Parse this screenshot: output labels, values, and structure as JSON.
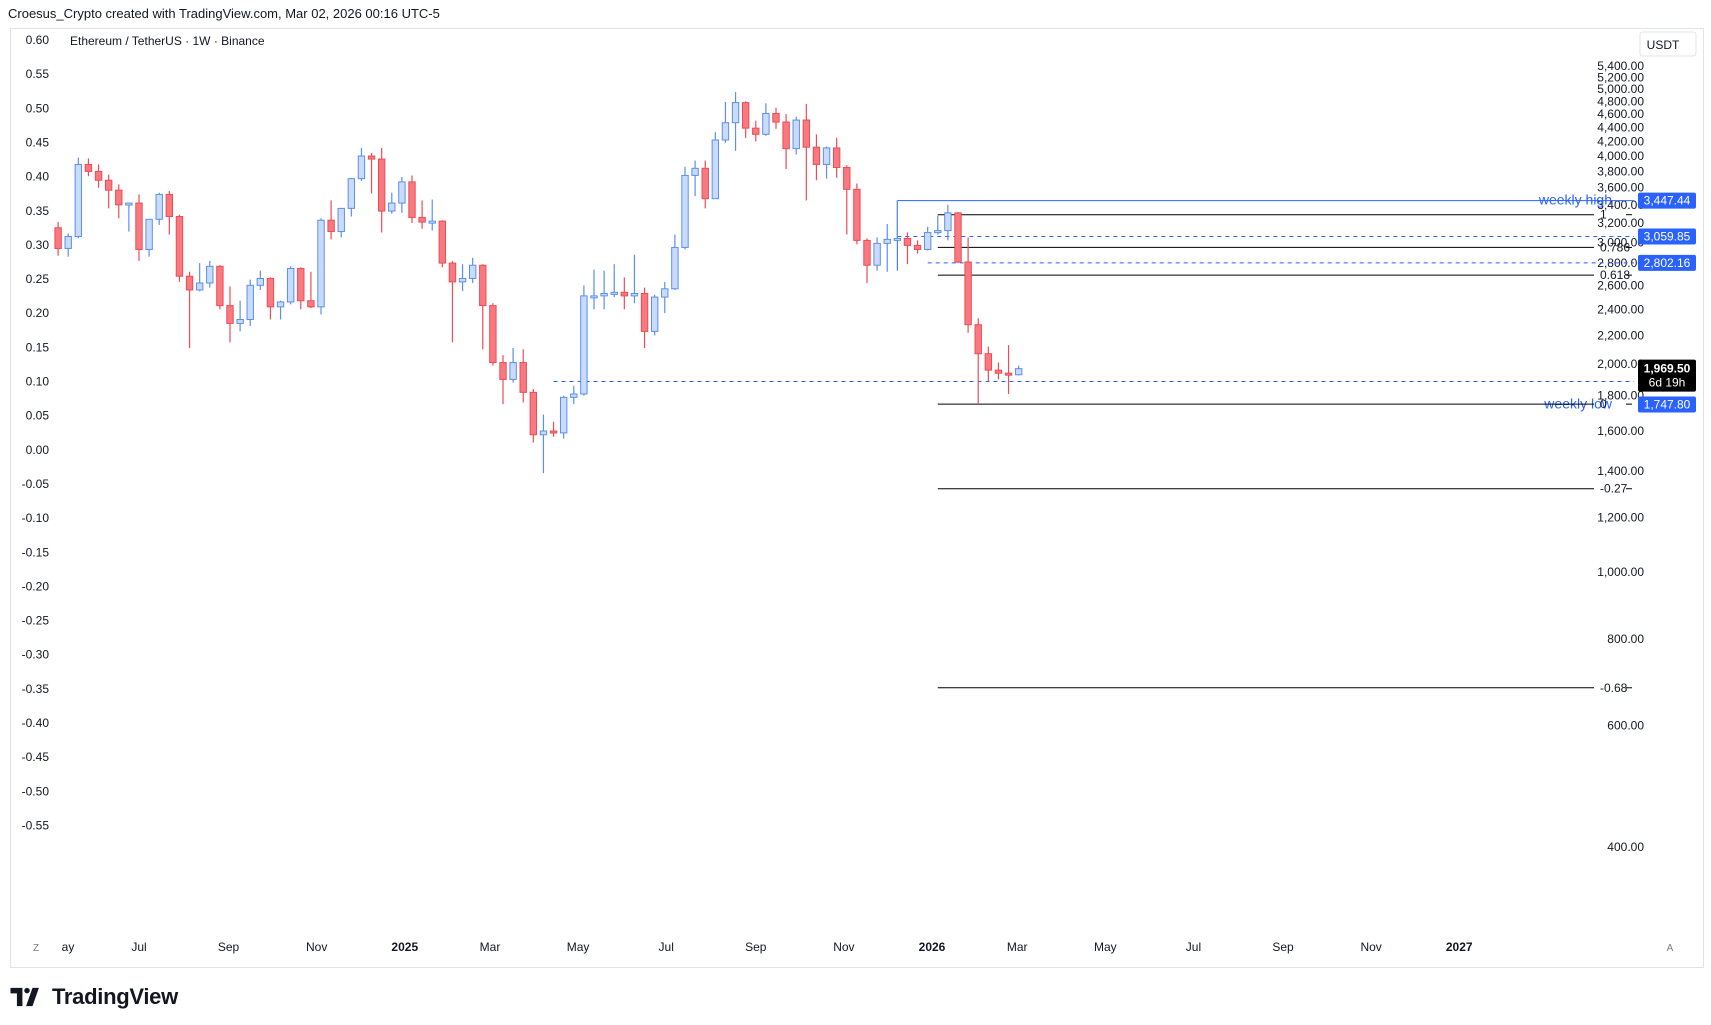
{
  "header": {
    "attribution": "Croesus_Crypto created with TradingView.com, Mar 02, 2026 00:16 UTC-5"
  },
  "brand": {
    "name": "TradingView"
  },
  "colors": {
    "up": "#5b8ff0",
    "up_fill": "#c9dbff",
    "down": "#f04b55",
    "down_fill": "#f77a80",
    "accent": "#2962ff",
    "fib": "#000000"
  },
  "chart_data": {
    "type": "candlestick",
    "title": "Ethereum / TetherUS · 1W · Binance",
    "currency": "USDT",
    "left_axis": {
      "ticks": [
        "0.60",
        "0.55",
        "0.50",
        "0.45",
        "0.40",
        "0.35",
        "0.30",
        "0.25",
        "0.20",
        "0.15",
        "0.10",
        "0.05",
        "0.00",
        "-0.05",
        "-0.10",
        "-0.15",
        "-0.20",
        "-0.25",
        "-0.30",
        "-0.35",
        "-0.40",
        "-0.45",
        "-0.50",
        "-0.55"
      ]
    },
    "right_axis": {
      "scale": "log",
      "ylim": [
        380,
        5650
      ],
      "ticks": [
        5400,
        5200,
        5000,
        4800,
        4600,
        4400,
        4200,
        4000,
        3800,
        3600,
        3400,
        3200,
        3000,
        2800,
        2600,
        2400,
        2200,
        2000,
        1800,
        1600,
        1400,
        1200,
        1000,
        800,
        600,
        400
      ],
      "tick_labels": [
        "5,400.00",
        "5,200.00",
        "5,000.00",
        "4,800.00",
        "4,600.00",
        "4,400.00",
        "4,200.00",
        "4,000.00",
        "3,800.00",
        "3,600.00",
        "3,400.00",
        "3,200.00",
        "3,000.00",
        "2,800.00",
        "2,600.00",
        "2,400.00",
        "2,200.00",
        "2,000.00",
        "1,800.00",
        "1,600.00",
        "1,400.00",
        "1,200.00",
        "1,000.00",
        "800.00",
        "600.00",
        "400.00"
      ]
    },
    "x_axis": {
      "labels": [
        {
          "date": "2024-05-01",
          "label": "ay",
          "bold": false
        },
        {
          "date": "2024-07-01",
          "label": "Jul",
          "bold": false
        },
        {
          "date": "2024-09-01",
          "label": "Sep",
          "bold": false
        },
        {
          "date": "2024-11-01",
          "label": "Nov",
          "bold": false
        },
        {
          "date": "2025-01-01",
          "label": "2025",
          "bold": true
        },
        {
          "date": "2025-03-01",
          "label": "Mar",
          "bold": false
        },
        {
          "date": "2025-05-01",
          "label": "May",
          "bold": false
        },
        {
          "date": "2025-07-01",
          "label": "Jul",
          "bold": false
        },
        {
          "date": "2025-09-01",
          "label": "Sep",
          "bold": false
        },
        {
          "date": "2025-11-01",
          "label": "Nov",
          "bold": false
        },
        {
          "date": "2026-01-01",
          "label": "2026",
          "bold": true
        },
        {
          "date": "2026-03-01",
          "label": "Mar",
          "bold": false
        },
        {
          "date": "2026-05-01",
          "label": "May",
          "bold": false
        },
        {
          "date": "2026-07-01",
          "label": "Jul",
          "bold": false
        },
        {
          "date": "2026-09-01",
          "label": "Sep",
          "bold": false
        },
        {
          "date": "2026-11-01",
          "label": "Nov",
          "bold": false
        },
        {
          "date": "2027-01-01",
          "label": "2027",
          "bold": true
        }
      ],
      "left_corner": "Z",
      "right_corner": "A"
    },
    "candles": [
      {
        "date": "2024-05-06",
        "o": 3150,
        "h": 3210,
        "l": 2870,
        "c": 2940
      },
      {
        "date": "2024-05-13",
        "o": 2940,
        "h": 3090,
        "l": 2860,
        "c": 3060
      },
      {
        "date": "2024-05-20",
        "o": 3060,
        "h": 3980,
        "l": 3040,
        "c": 3890
      },
      {
        "date": "2024-05-27",
        "o": 3890,
        "h": 3970,
        "l": 3740,
        "c": 3800
      },
      {
        "date": "2024-06-03",
        "o": 3800,
        "h": 3890,
        "l": 3600,
        "c": 3690
      },
      {
        "date": "2024-06-10",
        "o": 3690,
        "h": 3760,
        "l": 3360,
        "c": 3570
      },
      {
        "date": "2024-06-17",
        "o": 3570,
        "h": 3640,
        "l": 3250,
        "c": 3400
      },
      {
        "date": "2024-06-24",
        "o": 3400,
        "h": 3420,
        "l": 3110,
        "c": 3420
      },
      {
        "date": "2024-07-01",
        "o": 3420,
        "h": 3520,
        "l": 2820,
        "c": 2930
      },
      {
        "date": "2024-07-08",
        "o": 2930,
        "h": 3210,
        "l": 2860,
        "c": 3240
      },
      {
        "date": "2024-07-15",
        "o": 3240,
        "h": 3540,
        "l": 3180,
        "c": 3520
      },
      {
        "date": "2024-07-22",
        "o": 3520,
        "h": 3560,
        "l": 3080,
        "c": 3270
      },
      {
        "date": "2024-07-29",
        "o": 3270,
        "h": 3290,
        "l": 2630,
        "c": 2680
      },
      {
        "date": "2024-08-05",
        "o": 2680,
        "h": 2720,
        "l": 2110,
        "c": 2560
      },
      {
        "date": "2024-08-12",
        "o": 2560,
        "h": 2800,
        "l": 2550,
        "c": 2620
      },
      {
        "date": "2024-08-19",
        "o": 2620,
        "h": 2820,
        "l": 2580,
        "c": 2770
      },
      {
        "date": "2024-08-26",
        "o": 2770,
        "h": 2780,
        "l": 2400,
        "c": 2430
      },
      {
        "date": "2024-09-02",
        "o": 2430,
        "h": 2590,
        "l": 2150,
        "c": 2290
      },
      {
        "date": "2024-09-09",
        "o": 2290,
        "h": 2470,
        "l": 2230,
        "c": 2320
      },
      {
        "date": "2024-09-16",
        "o": 2320,
        "h": 2650,
        "l": 2270,
        "c": 2600
      },
      {
        "date": "2024-09-23",
        "o": 2600,
        "h": 2730,
        "l": 2560,
        "c": 2660
      },
      {
        "date": "2024-09-30",
        "o": 2660,
        "h": 2670,
        "l": 2320,
        "c": 2420
      },
      {
        "date": "2024-10-07",
        "o": 2420,
        "h": 2470,
        "l": 2320,
        "c": 2460
      },
      {
        "date": "2024-10-14",
        "o": 2460,
        "h": 2770,
        "l": 2440,
        "c": 2750
      },
      {
        "date": "2024-10-21",
        "o": 2750,
        "h": 2760,
        "l": 2400,
        "c": 2470
      },
      {
        "date": "2024-10-28",
        "o": 2470,
        "h": 2720,
        "l": 2410,
        "c": 2420
      },
      {
        "date": "2024-11-04",
        "o": 2420,
        "h": 3250,
        "l": 2360,
        "c": 3230
      },
      {
        "date": "2024-11-11",
        "o": 3230,
        "h": 3450,
        "l": 3030,
        "c": 3110
      },
      {
        "date": "2024-11-18",
        "o": 3110,
        "h": 3360,
        "l": 3050,
        "c": 3360
      },
      {
        "date": "2024-11-25",
        "o": 3360,
        "h": 3720,
        "l": 3270,
        "c": 3710
      },
      {
        "date": "2024-12-02",
        "o": 3710,
        "h": 4110,
        "l": 3680,
        "c": 4000
      },
      {
        "date": "2024-12-09",
        "o": 4000,
        "h": 4040,
        "l": 3530,
        "c": 3960
      },
      {
        "date": "2024-12-16",
        "o": 3960,
        "h": 4110,
        "l": 3100,
        "c": 3330
      },
      {
        "date": "2024-12-23",
        "o": 3330,
        "h": 3540,
        "l": 3300,
        "c": 3420
      },
      {
        "date": "2024-12-30",
        "o": 3420,
        "h": 3730,
        "l": 3310,
        "c": 3670
      },
      {
        "date": "2025-01-06",
        "o": 3670,
        "h": 3750,
        "l": 3200,
        "c": 3260
      },
      {
        "date": "2025-01-13",
        "o": 3260,
        "h": 3450,
        "l": 3140,
        "c": 3210
      },
      {
        "date": "2025-01-20",
        "o": 3210,
        "h": 3460,
        "l": 3120,
        "c": 3220
      },
      {
        "date": "2025-01-27",
        "o": 3220,
        "h": 3230,
        "l": 2760,
        "c": 2800
      },
      {
        "date": "2025-02-03",
        "o": 2800,
        "h": 2820,
        "l": 2150,
        "c": 2630
      },
      {
        "date": "2025-02-10",
        "o": 2630,
        "h": 2790,
        "l": 2550,
        "c": 2660
      },
      {
        "date": "2025-02-17",
        "o": 2660,
        "h": 2850,
        "l": 2620,
        "c": 2780
      },
      {
        "date": "2025-02-24",
        "o": 2780,
        "h": 2790,
        "l": 2100,
        "c": 2430
      },
      {
        "date": "2025-03-03",
        "o": 2430,
        "h": 2450,
        "l": 1990,
        "c": 2010
      },
      {
        "date": "2025-03-10",
        "o": 2010,
        "h": 2060,
        "l": 1750,
        "c": 1900
      },
      {
        "date": "2025-03-17",
        "o": 1900,
        "h": 2110,
        "l": 1880,
        "c": 2010
      },
      {
        "date": "2025-03-24",
        "o": 2010,
        "h": 2100,
        "l": 1760,
        "c": 1820
      },
      {
        "date": "2025-03-31",
        "o": 1820,
        "h": 1840,
        "l": 1540,
        "c": 1580
      },
      {
        "date": "2025-04-07",
        "o": 1580,
        "h": 1690,
        "l": 1390,
        "c": 1600
      },
      {
        "date": "2025-04-14",
        "o": 1600,
        "h": 1650,
        "l": 1570,
        "c": 1590
      },
      {
        "date": "2025-04-21",
        "o": 1590,
        "h": 1800,
        "l": 1560,
        "c": 1790
      },
      {
        "date": "2025-04-28",
        "o": 1790,
        "h": 1860,
        "l": 1750,
        "c": 1810
      },
      {
        "date": "2025-05-05",
        "o": 1810,
        "h": 2600,
        "l": 1800,
        "c": 2510
      },
      {
        "date": "2025-05-12",
        "o": 2510,
        "h": 2740,
        "l": 2400,
        "c": 2510
      },
      {
        "date": "2025-05-19",
        "o": 2510,
        "h": 2730,
        "l": 2400,
        "c": 2530
      },
      {
        "date": "2025-05-26",
        "o": 2530,
        "h": 2790,
        "l": 2500,
        "c": 2540
      },
      {
        "date": "2025-06-02",
        "o": 2540,
        "h": 2670,
        "l": 2400,
        "c": 2510
      },
      {
        "date": "2025-06-09",
        "o": 2510,
        "h": 2880,
        "l": 2450,
        "c": 2530
      },
      {
        "date": "2025-06-16",
        "o": 2530,
        "h": 2580,
        "l": 2110,
        "c": 2230
      },
      {
        "date": "2025-06-23",
        "o": 2230,
        "h": 2520,
        "l": 2200,
        "c": 2500
      },
      {
        "date": "2025-06-30",
        "o": 2500,
        "h": 2630,
        "l": 2370,
        "c": 2570
      },
      {
        "date": "2025-07-07",
        "o": 2570,
        "h": 3080,
        "l": 2560,
        "c": 2950
      },
      {
        "date": "2025-07-14",
        "o": 2950,
        "h": 3860,
        "l": 2930,
        "c": 3750
      },
      {
        "date": "2025-07-21",
        "o": 3750,
        "h": 3940,
        "l": 3500,
        "c": 3840
      },
      {
        "date": "2025-07-28",
        "o": 3840,
        "h": 3940,
        "l": 3360,
        "c": 3470
      },
      {
        "date": "2025-08-04",
        "o": 3470,
        "h": 4330,
        "l": 3480,
        "c": 4220
      },
      {
        "date": "2025-08-11",
        "o": 4220,
        "h": 4790,
        "l": 4180,
        "c": 4470
      },
      {
        "date": "2025-08-18",
        "o": 4470,
        "h": 4950,
        "l": 4070,
        "c": 4780
      },
      {
        "date": "2025-08-25",
        "o": 4780,
        "h": 4800,
        "l": 4250,
        "c": 4390
      },
      {
        "date": "2025-09-01",
        "o": 4390,
        "h": 4500,
        "l": 4200,
        "c": 4300
      },
      {
        "date": "2025-09-08",
        "o": 4300,
        "h": 4770,
        "l": 4280,
        "c": 4610
      },
      {
        "date": "2025-09-15",
        "o": 4610,
        "h": 4700,
        "l": 4380,
        "c": 4480
      },
      {
        "date": "2025-09-22",
        "o": 4480,
        "h": 4600,
        "l": 3830,
        "c": 4100
      },
      {
        "date": "2025-09-29",
        "o": 4100,
        "h": 4560,
        "l": 4020,
        "c": 4510
      },
      {
        "date": "2025-10-06",
        "o": 4510,
        "h": 4760,
        "l": 3450,
        "c": 4120
      },
      {
        "date": "2025-10-13",
        "o": 4120,
        "h": 4300,
        "l": 3690,
        "c": 3890
      },
      {
        "date": "2025-10-20",
        "o": 3890,
        "h": 4130,
        "l": 3710,
        "c": 4110
      },
      {
        "date": "2025-10-27",
        "o": 4110,
        "h": 4250,
        "l": 3720,
        "c": 3850
      },
      {
        "date": "2025-11-03",
        "o": 3850,
        "h": 3880,
        "l": 3080,
        "c": 3580
      },
      {
        "date": "2025-11-10",
        "o": 3580,
        "h": 3650,
        "l": 2980,
        "c": 3020
      },
      {
        "date": "2025-11-17",
        "o": 3020,
        "h": 3040,
        "l": 2620,
        "c": 2780
      },
      {
        "date": "2025-11-24",
        "o": 2780,
        "h": 3050,
        "l": 2730,
        "c": 2990
      },
      {
        "date": "2025-12-01",
        "o": 2990,
        "h": 3190,
        "l": 2720,
        "c": 3030
      },
      {
        "date": "2025-12-08",
        "o": 3030,
        "h": 3450,
        "l": 3030,
        "c": 3040
      },
      {
        "date": "2025-12-15",
        "o": 3040,
        "h": 3100,
        "l": 2790,
        "c": 2970
      },
      {
        "date": "2025-12-22",
        "o": 2970,
        "h": 3020,
        "l": 2890,
        "c": 2930
      },
      {
        "date": "2025-12-29",
        "o": 2930,
        "h": 3160,
        "l": 2920,
        "c": 3100
      },
      {
        "date": "2026-01-05",
        "o": 3100,
        "h": 3280,
        "l": 3080,
        "c": 3120
      },
      {
        "date": "2026-01-12",
        "o": 3120,
        "h": 3400,
        "l": 3020,
        "c": 3310
      },
      {
        "date": "2026-01-19",
        "o": 3310,
        "h": 3320,
        "l": 2800,
        "c": 2810
      },
      {
        "date": "2026-01-26",
        "o": 2810,
        "h": 3050,
        "l": 2220,
        "c": 2280
      },
      {
        "date": "2026-02-02",
        "o": 2280,
        "h": 2330,
        "l": 1750,
        "c": 2070
      },
      {
        "date": "2026-02-09",
        "o": 2070,
        "h": 2120,
        "l": 1890,
        "c": 1960
      },
      {
        "date": "2026-02-16",
        "o": 1960,
        "h": 2010,
        "l": 1900,
        "c": 1940
      },
      {
        "date": "2026-02-23",
        "o": 1940,
        "h": 2130,
        "l": 1810,
        "c": 1930
      },
      {
        "date": "2026-03-02",
        "o": 1930,
        "h": 1990,
        "l": 1925,
        "c": 1969.5
      }
    ],
    "levels": [
      {
        "price": 3447.44,
        "label": "weekly high",
        "badge": "3,447.44",
        "style": "solid",
        "start": "2025-12-08"
      },
      {
        "price": 3059.85,
        "badge": "3,059.85",
        "style": "dashed",
        "start": "2025-12-08"
      },
      {
        "price": 2802.16,
        "badge": "2,802.16",
        "style": "dashed",
        "start": "2025-12-29"
      },
      {
        "price": 1887.0,
        "badge": "1,887.00",
        "style": "dashed",
        "start": "2025-04-14"
      },
      {
        "price": 1747.8,
        "label": "weekly low",
        "badge": "1,747.80",
        "style": "none",
        "start": "2026-02-02"
      }
    ],
    "fib": [
      {
        "level": "1",
        "price": 3290
      },
      {
        "level": "0.786",
        "price": 2950
      },
      {
        "level": "0.618",
        "price": 2690
      },
      {
        "level": "0",
        "price": 1750
      },
      {
        "level": "-0.27",
        "price": 1320
      },
      {
        "level": "-0.68",
        "price": 680
      }
    ],
    "fib_start": "2026-01-05",
    "last_price": {
      "value": 1969.5,
      "label": "1,969.50",
      "countdown": "6d 19h"
    }
  }
}
